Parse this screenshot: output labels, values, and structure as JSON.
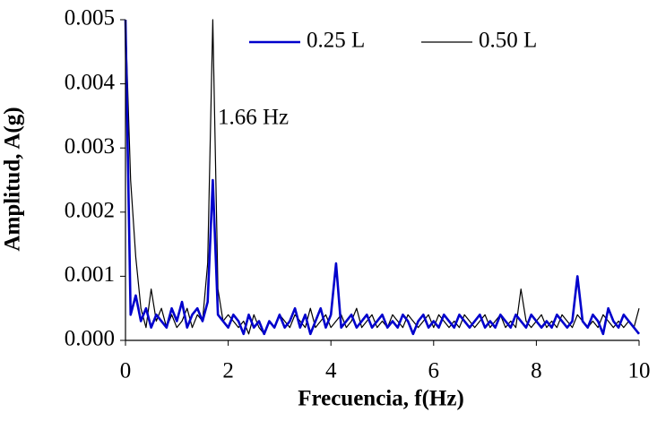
{
  "chart_data": {
    "type": "line",
    "x_label": "Frecuencia, f(Hz)",
    "y_label": "Amplitud, A(g)",
    "annotation": "1.66 Hz",
    "legend": "top",
    "grid": false,
    "x": [
      0,
      0.1,
      0.2,
      0.3,
      0.4,
      0.5,
      0.6,
      0.7,
      0.8,
      0.9,
      1,
      1.1,
      1.2,
      1.3,
      1.4,
      1.5,
      1.6,
      1.7,
      1.8,
      1.9,
      2,
      2.1,
      2.2,
      2.3,
      2.4,
      2.5,
      2.6,
      2.7,
      2.8,
      2.9,
      3,
      3.1,
      3.2,
      3.3,
      3.4,
      3.5,
      3.6,
      3.7,
      3.8,
      3.9,
      4,
      4.1,
      4.2,
      4.3,
      4.4,
      4.5,
      4.6,
      4.7,
      4.8,
      4.9,
      5,
      5.1,
      5.2,
      5.3,
      5.4,
      5.5,
      5.6,
      5.7,
      5.8,
      5.9,
      6,
      6.1,
      6.2,
      6.3,
      6.4,
      6.5,
      6.6,
      6.7,
      6.8,
      6.9,
      7,
      7.1,
      7.2,
      7.3,
      7.4,
      7.5,
      7.6,
      7.7,
      7.8,
      7.9,
      8,
      8.1,
      8.2,
      8.3,
      8.4,
      8.5,
      8.6,
      8.7,
      8.8,
      8.9,
      9,
      9.1,
      9.2,
      9.3,
      9.4,
      9.5,
      9.6,
      9.7,
      9.8,
      9.9,
      10
    ],
    "series": [
      {
        "name": "0.25 L",
        "color": "#0000cc",
        "width": 2.6,
        "values": [
          0.005,
          0.0004,
          0.0007,
          0.0003,
          0.0005,
          0.0002,
          0.0004,
          0.0003,
          0.0002,
          0.0005,
          0.0003,
          0.0006,
          0.0002,
          0.0004,
          0.0005,
          0.0003,
          0.0006,
          0.0025,
          0.0004,
          0.0003,
          0.0002,
          0.0004,
          0.0003,
          0.0001,
          0.0004,
          0.0002,
          0.0003,
          0.0001,
          0.0003,
          0.0002,
          0.0004,
          0.0002,
          0.0003,
          0.0005,
          0.0002,
          0.0004,
          0.0001,
          0.0003,
          0.0005,
          0.0002,
          0.0004,
          0.0012,
          0.0002,
          0.0003,
          0.0004,
          0.0002,
          0.0003,
          0.0004,
          0.0002,
          0.0003,
          0.0004,
          0.0002,
          0.0003,
          0.0002,
          0.0004,
          0.0003,
          0.0001,
          0.0003,
          0.0004,
          0.0002,
          0.0003,
          0.0002,
          0.0004,
          0.0003,
          0.0002,
          0.0004,
          0.0003,
          0.0002,
          0.0003,
          0.0004,
          0.0002,
          0.0003,
          0.0002,
          0.0004,
          0.0003,
          0.0002,
          0.0004,
          0.0003,
          0.0002,
          0.0004,
          0.0003,
          0.0002,
          0.0003,
          0.0002,
          0.0004,
          0.0003,
          0.0002,
          0.0003,
          0.001,
          0.0003,
          0.0002,
          0.0004,
          0.0003,
          0.0001,
          0.0005,
          0.0003,
          0.0002,
          0.0004,
          0.0003,
          0.0002,
          0.0001
        ]
      },
      {
        "name": "0.50 L",
        "color": "#000000",
        "width": 1.2,
        "values": [
          0.005,
          0.0025,
          0.0013,
          0.0005,
          0.0002,
          0.0008,
          0.0003,
          0.0005,
          0.0002,
          0.0004,
          0.0002,
          0.0003,
          0.0005,
          0.0002,
          0.0004,
          0.0003,
          0.0012,
          0.005,
          0.0008,
          0.0003,
          0.0004,
          0.0003,
          0.0002,
          0.0003,
          0.0001,
          0.0004,
          0.0002,
          0.0001,
          0.0003,
          0.0002,
          0.0004,
          0.0003,
          0.0002,
          0.0004,
          0.0003,
          0.0002,
          0.0005,
          0.0002,
          0.0003,
          0.0004,
          0.0002,
          0.0003,
          0.0004,
          0.0002,
          0.0003,
          0.0005,
          0.0002,
          0.0003,
          0.0004,
          0.0002,
          0.0003,
          0.0002,
          0.0004,
          0.0003,
          0.0002,
          0.0004,
          0.0003,
          0.0002,
          0.0003,
          0.0004,
          0.0002,
          0.0004,
          0.0003,
          0.0002,
          0.0003,
          0.0002,
          0.0004,
          0.0003,
          0.0002,
          0.0003,
          0.0004,
          0.0002,
          0.0003,
          0.0004,
          0.0002,
          0.0003,
          0.0002,
          0.0008,
          0.0003,
          0.0002,
          0.0003,
          0.0004,
          0.0002,
          0.0003,
          0.0002,
          0.0004,
          0.0003,
          0.0002,
          0.0004,
          0.0003,
          0.0002,
          0.0003,
          0.0002,
          0.0004,
          0.0003,
          0.0002,
          0.0003,
          0.0002,
          0.0003,
          0.0002,
          0.0005
        ]
      }
    ],
    "xlim": [
      0,
      10
    ],
    "xticks": [
      0,
      2,
      4,
      6,
      8,
      10
    ],
    "ylim": [
      0,
      0.005
    ],
    "yticks": [
      {
        "value": 0,
        "label": "0.000"
      },
      {
        "value": 0.001,
        "label": "0.001"
      },
      {
        "value": 0.002,
        "label": "0.002"
      },
      {
        "value": 0.003,
        "label": "0.003"
      },
      {
        "value": 0.004,
        "label": "0.004"
      },
      {
        "value": 0.005,
        "label": "0.005"
      }
    ]
  }
}
